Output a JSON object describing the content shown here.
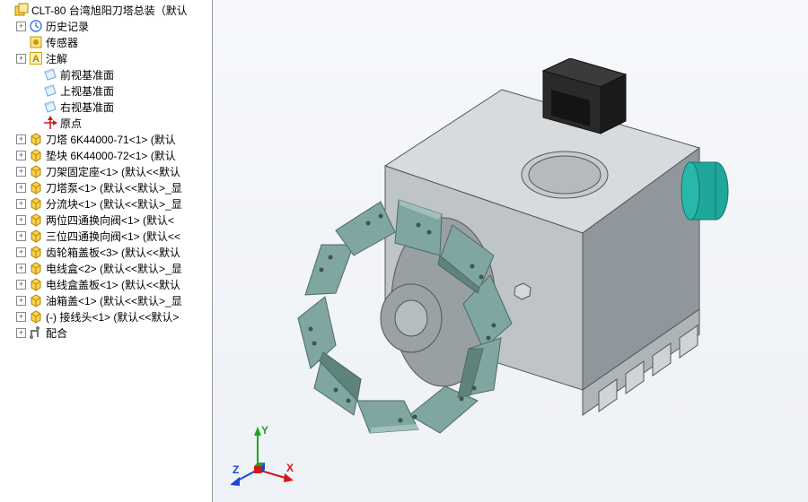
{
  "colors": {
    "treeText": "#000000",
    "expanderBorder": "#888888",
    "panelBorder": "#999999",
    "viewportTop": "#f6f8fb",
    "viewportBottom": "#eef1f5",
    "axisX": "#d01818",
    "axisY": "#1aa81a",
    "axisZ": "#1848d0",
    "modelBody": "#bfc4c7",
    "modelBodyShadow": "#8f979c",
    "modelBodyLight": "#d7dbdd",
    "turret": "#7fa6a0",
    "turretDark": "#5e837d",
    "turretLight": "#a0c0ba",
    "motor": "#1fa79b",
    "solenoid": "#2a2a2a",
    "edge": "#555"
  },
  "triad": {
    "x": "X",
    "y": "Y",
    "z": "Z"
  },
  "tree": [
    {
      "depth": 0,
      "expander": "",
      "icon": "assembly",
      "label": "CLT-80 台湾旭阳刀塔总装（默认"
    },
    {
      "depth": 1,
      "expander": "+",
      "icon": "history",
      "label": "历史记录"
    },
    {
      "depth": 1,
      "expander": "",
      "icon": "sensor",
      "label": "传感器"
    },
    {
      "depth": 1,
      "expander": "+",
      "icon": "annot",
      "label": "注解"
    },
    {
      "depth": 2,
      "expander": "",
      "icon": "plane",
      "label": "前视基准面"
    },
    {
      "depth": 2,
      "expander": "",
      "icon": "plane",
      "label": "上视基准面"
    },
    {
      "depth": 2,
      "expander": "",
      "icon": "plane",
      "label": "右视基准面"
    },
    {
      "depth": 2,
      "expander": "",
      "icon": "origin",
      "label": "原点"
    },
    {
      "depth": 1,
      "expander": "+",
      "icon": "part",
      "label": "刀塔 6K44000-71<1> (默认"
    },
    {
      "depth": 1,
      "expander": "+",
      "icon": "part",
      "label": "垫块 6K44000-72<1> (默认"
    },
    {
      "depth": 1,
      "expander": "+",
      "icon": "part",
      "label": "刀架固定座<1> (默认<<默认"
    },
    {
      "depth": 1,
      "expander": "+",
      "icon": "part",
      "label": "刀塔泵<1> (默认<<默认>_显"
    },
    {
      "depth": 1,
      "expander": "+",
      "icon": "part",
      "label": "分流块<1> (默认<<默认>_显"
    },
    {
      "depth": 1,
      "expander": "+",
      "icon": "part",
      "label": "两位四通换向阀<1> (默认<"
    },
    {
      "depth": 1,
      "expander": "+",
      "icon": "part",
      "label": "三位四通换向阀<1> (默认<<"
    },
    {
      "depth": 1,
      "expander": "+",
      "icon": "part",
      "label": "齿轮箱盖板<3> (默认<<默认"
    },
    {
      "depth": 1,
      "expander": "+",
      "icon": "part",
      "label": "电线盒<2> (默认<<默认>_显"
    },
    {
      "depth": 1,
      "expander": "+",
      "icon": "part",
      "label": "电线盒盖板<1> (默认<<默认"
    },
    {
      "depth": 1,
      "expander": "+",
      "icon": "part",
      "label": "油箱盖<1> (默认<<默认>_显"
    },
    {
      "depth": 1,
      "expander": "+",
      "icon": "part",
      "label": "(-) 接线头<1> (默认<<默认>"
    },
    {
      "depth": 1,
      "expander": "+",
      "icon": "mates",
      "label": "配合"
    }
  ]
}
